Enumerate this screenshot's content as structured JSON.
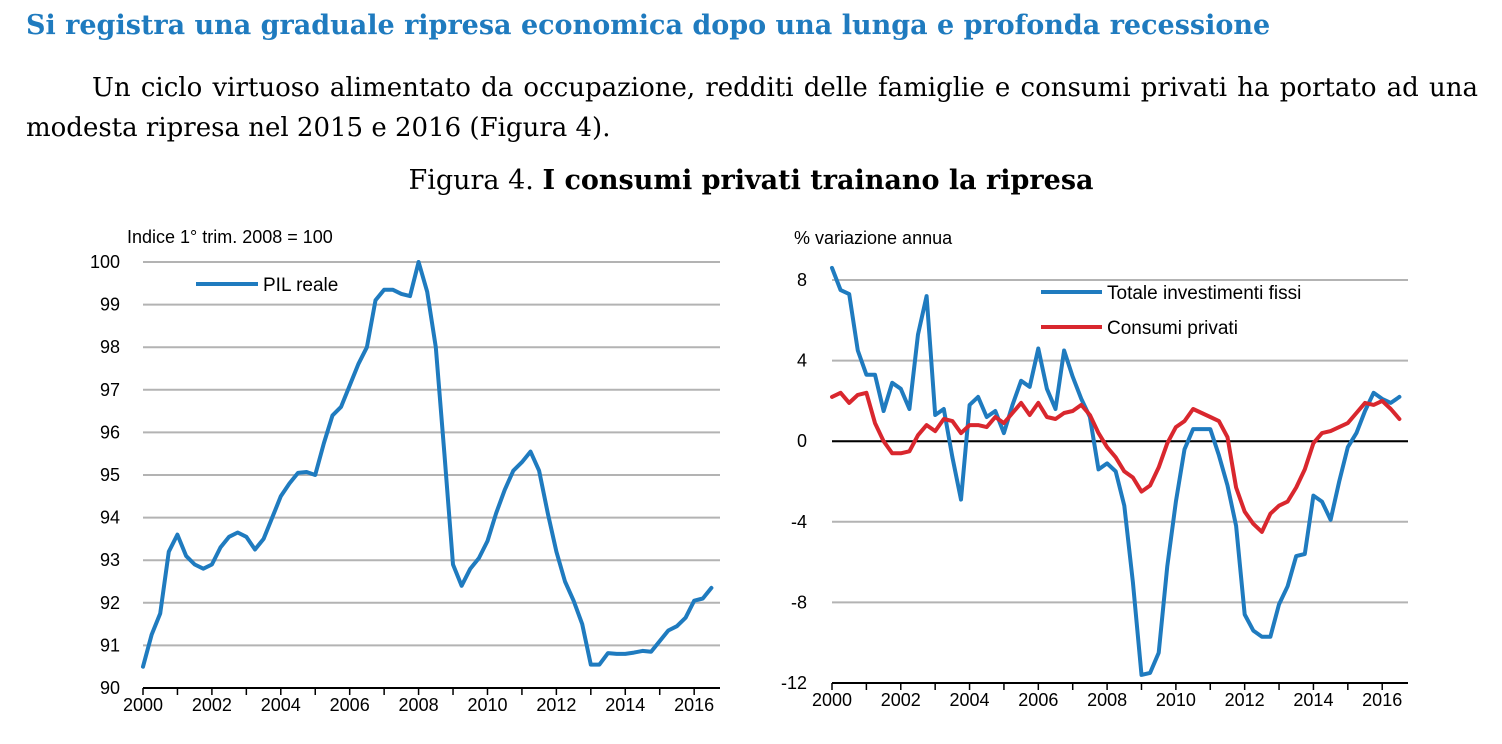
{
  "text": {
    "heading": "Si registra una graduale ripresa economica dopo una lunga e profonda recessione",
    "paragraph": "Un ciclo virtuoso alimentato da occupazione, redditi delle famiglie e consumi privati ha portato ad una modesta ripresa nel 2015 e 2016 (Figura 4).",
    "caption_prefix": "Figura 4.",
    "caption_title": "I consumi privati trainano la ripresa"
  },
  "colors": {
    "heading": "#1f7bbf",
    "blue_series": "#1f7bbf",
    "red_series": "#d9272e",
    "grid": "#b3b3b3"
  },
  "chart_data": [
    {
      "type": "line",
      "ylabel": "Indice 1° trim. 2008 = 100",
      "xlim": [
        2000,
        2016.75
      ],
      "ylim": [
        90,
        100
      ],
      "yticks": [
        "90",
        "91",
        "92",
        "93",
        "94",
        "95",
        "96",
        "97",
        "98",
        "99",
        "100"
      ],
      "xticks": [
        "2000",
        "2002",
        "2004",
        "2006",
        "2008",
        "2010",
        "2012",
        "2014",
        "2016"
      ],
      "grid": true,
      "legend": "top-left",
      "series": [
        {
          "name": "PIL reale",
          "color": "#1f7bbf",
          "x": [
            2000.0,
            2000.25,
            2000.5,
            2000.75,
            2001.0,
            2001.25,
            2001.5,
            2001.75,
            2002.0,
            2002.25,
            2002.5,
            2002.75,
            2003.0,
            2003.25,
            2003.5,
            2003.75,
            2004.0,
            2004.25,
            2004.5,
            2004.75,
            2005.0,
            2005.25,
            2005.5,
            2005.75,
            2006.0,
            2006.25,
            2006.5,
            2006.75,
            2007.0,
            2007.25,
            2007.5,
            2007.75,
            2008.0,
            2008.25,
            2008.5,
            2008.75,
            2009.0,
            2009.25,
            2009.5,
            2009.75,
            2010.0,
            2010.25,
            2010.5,
            2010.75,
            2011.0,
            2011.25,
            2011.5,
            2011.75,
            2012.0,
            2012.25,
            2012.5,
            2012.75,
            2013.0,
            2013.25,
            2013.5,
            2013.75,
            2014.0,
            2014.25,
            2014.5,
            2014.75,
            2015.0,
            2015.25,
            2015.5,
            2015.75,
            2016.0,
            2016.25,
            2016.5
          ],
          "values": [
            90.5,
            91.25,
            91.75,
            93.2,
            93.6,
            93.1,
            92.9,
            92.8,
            92.9,
            93.3,
            93.55,
            93.65,
            93.55,
            93.25,
            93.5,
            94.0,
            94.5,
            94.8,
            95.05,
            95.07,
            95.0,
            95.75,
            96.4,
            96.6,
            97.1,
            97.6,
            98.0,
            99.1,
            99.35,
            99.35,
            99.25,
            99.2,
            100.0,
            99.3,
            98.0,
            95.5,
            92.9,
            92.4,
            92.8,
            93.05,
            93.45,
            94.1,
            94.65,
            95.1,
            95.3,
            95.55,
            95.1,
            94.1,
            93.2,
            92.5,
            92.05,
            91.5,
            90.55,
            90.55,
            90.82,
            90.8,
            90.8,
            90.83,
            90.87,
            90.85,
            91.1,
            91.35,
            91.45,
            91.65,
            92.05,
            92.1,
            92.35
          ]
        }
      ]
    },
    {
      "type": "line",
      "ylabel": "% variazione annua",
      "xlim": [
        2000,
        2016.75
      ],
      "ylim": [
        -12,
        8
      ],
      "yticks": [
        "-12",
        "-8",
        "-4",
        "0",
        "4",
        "8"
      ],
      "xticks": [
        "2000",
        "2002",
        "2004",
        "2006",
        "2008",
        "2010",
        "2012",
        "2014",
        "2016"
      ],
      "grid": true,
      "zero_line": true,
      "legend": "top-right",
      "series": [
        {
          "name": "Totale investimenti fissi",
          "color": "#1f7bbf",
          "x": [
            2000.0,
            2000.25,
            2000.5,
            2000.75,
            2001.0,
            2001.25,
            2001.5,
            2001.75,
            2002.0,
            2002.25,
            2002.5,
            2002.75,
            2003.0,
            2003.25,
            2003.5,
            2003.75,
            2004.0,
            2004.25,
            2004.5,
            2004.75,
            2005.0,
            2005.25,
            2005.5,
            2005.75,
            2006.0,
            2006.25,
            2006.5,
            2006.75,
            2007.0,
            2007.25,
            2007.5,
            2007.75,
            2008.0,
            2008.25,
            2008.5,
            2008.75,
            2009.0,
            2009.25,
            2009.5,
            2009.75,
            2010.0,
            2010.25,
            2010.5,
            2010.75,
            2011.0,
            2011.25,
            2011.5,
            2011.75,
            2012.0,
            2012.25,
            2012.5,
            2012.75,
            2013.0,
            2013.25,
            2013.5,
            2013.75,
            2014.0,
            2014.25,
            2014.5,
            2014.75,
            2015.0,
            2015.25,
            2015.5,
            2015.75,
            2016.0,
            2016.25,
            2016.5
          ],
          "values": [
            8.6,
            7.5,
            7.3,
            4.5,
            3.3,
            3.3,
            1.5,
            2.9,
            2.6,
            1.6,
            5.3,
            7.2,
            1.3,
            1.6,
            -0.8,
            -2.9,
            1.8,
            2.2,
            1.2,
            1.5,
            0.4,
            1.8,
            3.0,
            2.7,
            4.6,
            2.6,
            1.6,
            4.5,
            3.2,
            2.1,
            1.2,
            -1.4,
            -1.1,
            -1.5,
            -3.2,
            -7.0,
            -11.6,
            -11.5,
            -10.5,
            -6.2,
            -3.0,
            -0.4,
            0.6,
            0.6,
            0.6,
            -0.7,
            -2.2,
            -4.2,
            -8.6,
            -9.4,
            -9.7,
            -9.7,
            -8.1,
            -7.2,
            -5.7,
            -5.6,
            -2.7,
            -3.0,
            -3.9,
            -2.0,
            -0.3,
            0.4,
            1.5,
            2.4,
            2.1,
            1.9,
            2.2
          ]
        },
        {
          "name": "Consumi privati",
          "color": "#d9272e",
          "x": [
            2000.0,
            2000.25,
            2000.5,
            2000.75,
            2001.0,
            2001.25,
            2001.5,
            2001.75,
            2002.0,
            2002.25,
            2002.5,
            2002.75,
            2003.0,
            2003.25,
            2003.5,
            2003.75,
            2004.0,
            2004.25,
            2004.5,
            2004.75,
            2005.0,
            2005.25,
            2005.5,
            2005.75,
            2006.0,
            2006.25,
            2006.5,
            2006.75,
            2007.0,
            2007.25,
            2007.5,
            2007.75,
            2008.0,
            2008.25,
            2008.5,
            2008.75,
            2009.0,
            2009.25,
            2009.5,
            2009.75,
            2010.0,
            2010.25,
            2010.5,
            2010.75,
            2011.0,
            2011.25,
            2011.5,
            2011.75,
            2012.0,
            2012.25,
            2012.5,
            2012.75,
            2013.0,
            2013.25,
            2013.5,
            2013.75,
            2014.0,
            2014.25,
            2014.5,
            2014.75,
            2015.0,
            2015.25,
            2015.5,
            2015.75,
            2016.0,
            2016.25,
            2016.5
          ],
          "values": [
            2.2,
            2.4,
            1.9,
            2.3,
            2.4,
            0.9,
            0.0,
            -0.6,
            -0.6,
            -0.5,
            0.3,
            0.8,
            0.5,
            1.1,
            1.0,
            0.4,
            0.8,
            0.8,
            0.7,
            1.2,
            0.9,
            1.4,
            1.9,
            1.3,
            1.9,
            1.2,
            1.1,
            1.4,
            1.5,
            1.8,
            1.3,
            0.4,
            -0.3,
            -0.8,
            -1.5,
            -1.8,
            -2.5,
            -2.2,
            -1.3,
            -0.1,
            0.7,
            1.0,
            1.6,
            1.4,
            1.2,
            1.0,
            0.2,
            -2.3,
            -3.5,
            -4.1,
            -4.5,
            -3.6,
            -3.2,
            -3.0,
            -2.3,
            -1.4,
            -0.1,
            0.4,
            0.5,
            0.7,
            0.9,
            1.4,
            1.9,
            1.8,
            2.0,
            1.6,
            1.1
          ]
        }
      ]
    }
  ]
}
